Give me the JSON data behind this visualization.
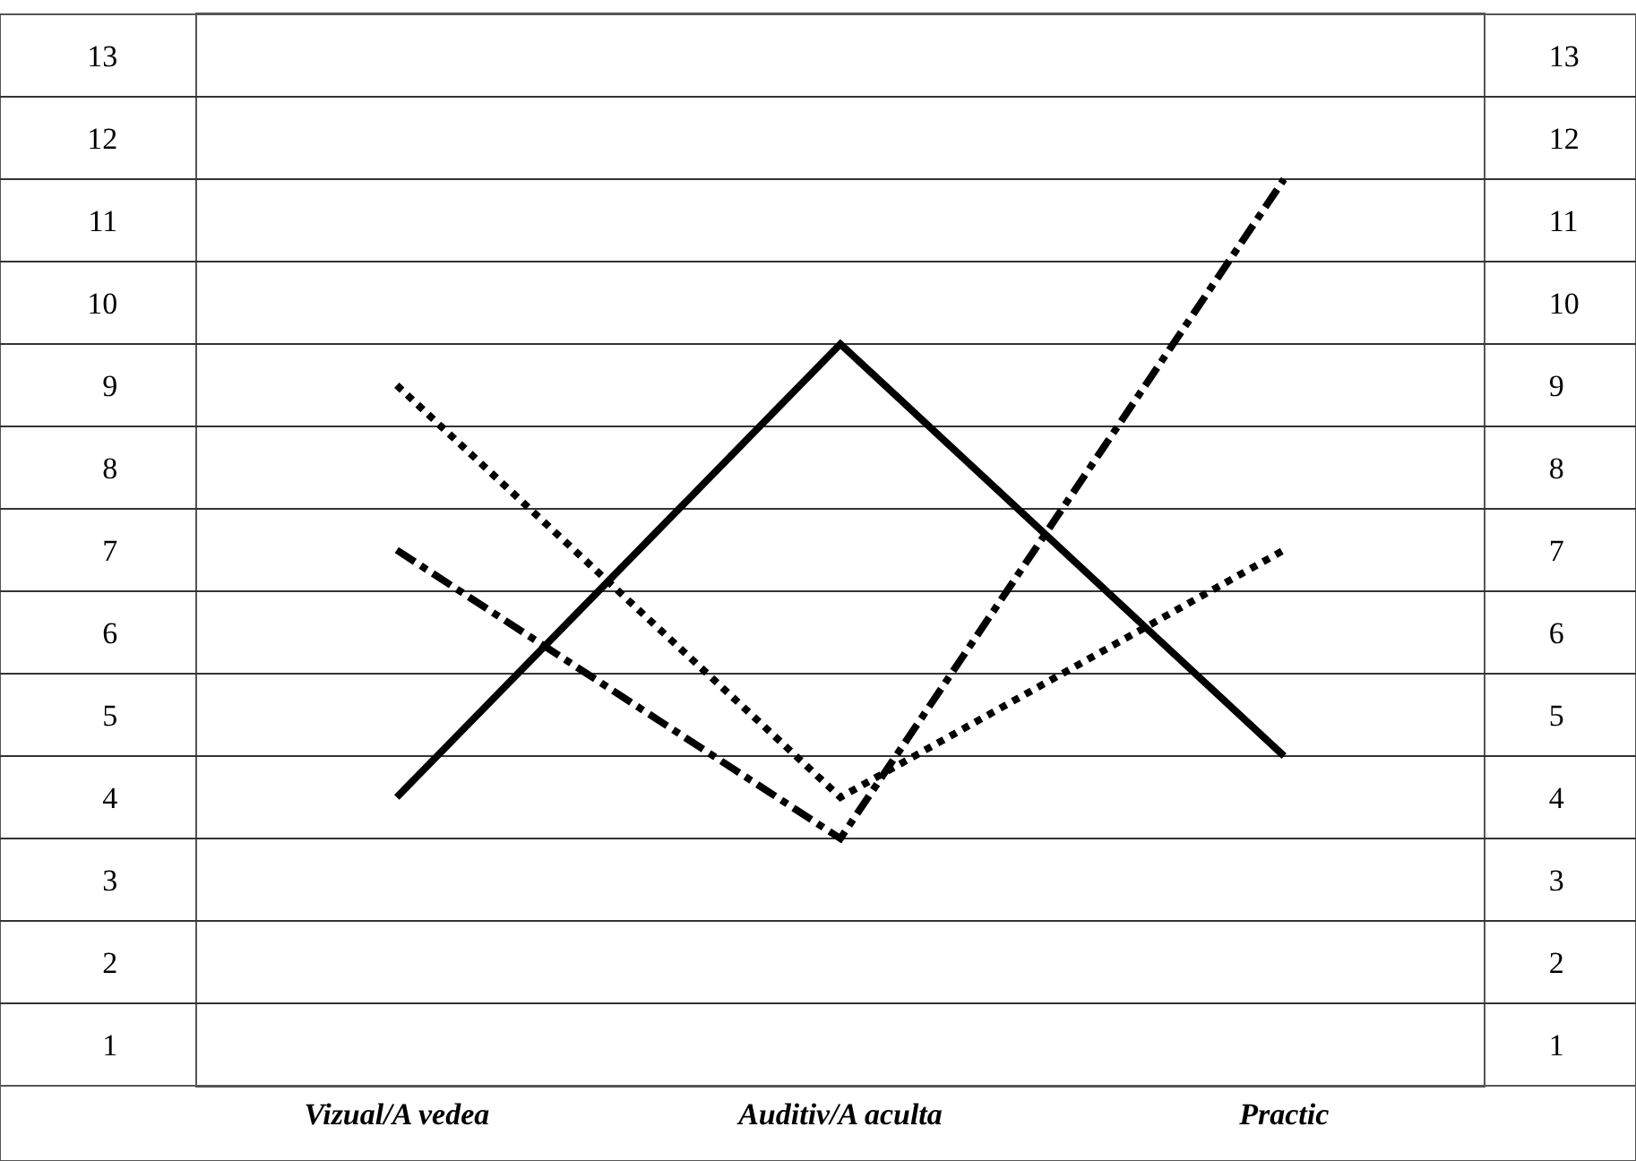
{
  "chart_data": {
    "type": "line",
    "categories": [
      "Vizual/A vedea",
      "Auditiv/A aculta",
      "Practic"
    ],
    "series": [
      {
        "color": "#000000",
        "line_style": "solid",
        "values": [
          4,
          9.5,
          4.5
        ]
      },
      {
        "color": "#000000",
        "line_style": "dotted",
        "values": [
          9,
          4,
          7
        ]
      },
      {
        "color": "#000000",
        "line_style": "dashdot",
        "values": [
          7,
          3.5,
          11.5
        ]
      }
    ],
    "ylim": [
      0.5,
      13.5
    ],
    "yticks": [
      1,
      2,
      3,
      4,
      5,
      6,
      7,
      8,
      9,
      10,
      11,
      12,
      13
    ],
    "y2lim": [
      0.5,
      13.5
    ],
    "y2ticks": [
      1,
      2,
      3,
      4,
      5,
      6,
      7,
      8,
      9,
      10,
      11,
      12,
      13
    ],
    "grid": "y",
    "marker": "none"
  }
}
